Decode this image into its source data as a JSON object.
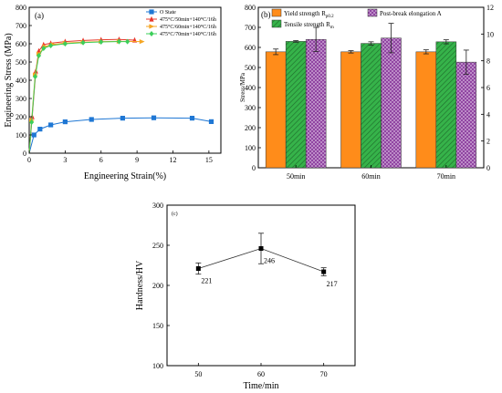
{
  "figure": [
    {
      "panel_label": "(a)",
      "chart_data": {
        "type": "line",
        "xlabel": "Engineering Strain(%)",
        "ylabel": "Engineering Stress (MPa)",
        "xlim": [
          0,
          16
        ],
        "ylim": [
          0,
          800
        ],
        "xticks": [
          0,
          3,
          6,
          9,
          12,
          15
        ],
        "yticks": [
          0,
          100,
          200,
          300,
          400,
          500,
          600,
          700,
          800
        ],
        "legend_position": "top-right",
        "series": [
          {
            "name": "O State",
            "color": "#1f77d4",
            "marker": "square",
            "x": [
              0,
              0.4,
              0.9,
              1.8,
              3.0,
              5.2,
              7.8,
              10.4,
              13.6,
              15.2
            ],
            "y": [
              0,
              100,
              132,
              155,
              172,
              185,
              192,
              194,
              192,
              173
            ]
          },
          {
            "name": "475°C/50min+140°C/16h",
            "color": "#e8372c",
            "marker": "triangle",
            "x": [
              0,
              0.25,
              0.55,
              0.8,
              1.2,
              1.8,
              3.0,
              4.5,
              6.0,
              7.5,
              8.8
            ],
            "y": [
              0,
              200,
              450,
              560,
              595,
              603,
              612,
              618,
              622,
              624,
              620
            ]
          },
          {
            "name": "475°C/60min+140°C/16h",
            "color": "#f5a623",
            "marker": "triangle-right",
            "x": [
              0,
              0.2,
              0.5,
              0.8,
              1.3,
              2.0,
              3.0,
              4.5,
              6.0,
              7.5,
              9.4
            ],
            "y": [
              0,
              180,
              430,
              545,
              585,
              596,
              604,
              609,
              612,
              613,
              612
            ]
          },
          {
            "name": "475°C/70min+140°C/16h",
            "color": "#3ccf5a",
            "marker": "diamond",
            "x": [
              0,
              0.2,
              0.5,
              0.8,
              1.2,
              1.8,
              3.0,
              4.5,
              6.0,
              7.5,
              8.2
            ],
            "y": [
              0,
              170,
              420,
              535,
              575,
              590,
              600,
              606,
              610,
              612,
              612
            ]
          }
        ]
      }
    },
    {
      "panel_label": "(b)",
      "chart_data": {
        "type": "bar",
        "categories": [
          "50min",
          "60min",
          "70min"
        ],
        "ylabel": "Stress/MPa",
        "ylim": [
          0,
          800
        ],
        "yticks": [
          0,
          100,
          200,
          300,
          400,
          500,
          600,
          700,
          800
        ],
        "y2lim": [
          0,
          12
        ],
        "y2ticks": [
          0,
          2,
          4,
          6,
          8,
          10,
          12
        ],
        "legend_position": "top",
        "series": [
          {
            "name": "Yield strength Rp0.2",
            "name_main": "Yield strength R",
            "name_sub": "p0.2",
            "axis": "left",
            "color": "#ff8c1a",
            "pattern": "solid",
            "values": [
              578,
              578,
              578
            ],
            "errors": [
              14,
              6,
              10
            ]
          },
          {
            "name": "Tensile strength Rm",
            "name_main": "Tensile strength R",
            "name_sub": "m",
            "axis": "left",
            "color": "#36b34a",
            "pattern": "hatch",
            "values": [
              630,
              620,
              628
            ],
            "errors": [
              4,
              8,
              10
            ]
          },
          {
            "name": "Post-break elongation A",
            "axis": "right",
            "color": "#8a3c9c",
            "pattern": "crosshatch",
            "values": [
              9.6,
              9.7,
              7.9
            ],
            "errors": [
              0.9,
              1.1,
              0.9
            ]
          }
        ]
      }
    },
    {
      "panel_label": "(c)",
      "chart_data": {
        "type": "line",
        "xlabel": "Time/min",
        "ylabel": "Hardness/HV",
        "x": [
          50,
          60,
          70
        ],
        "values": [
          221,
          246,
          217
        ],
        "errors": [
          7,
          19,
          5
        ],
        "point_labels": [
          "221",
          "246",
          "217"
        ],
        "xlim": [
          45,
          75
        ],
        "xticks": [
          50,
          60,
          70
        ],
        "ylim": [
          100,
          300
        ],
        "yticks": [
          100,
          150,
          200,
          250,
          300
        ]
      }
    }
  ]
}
